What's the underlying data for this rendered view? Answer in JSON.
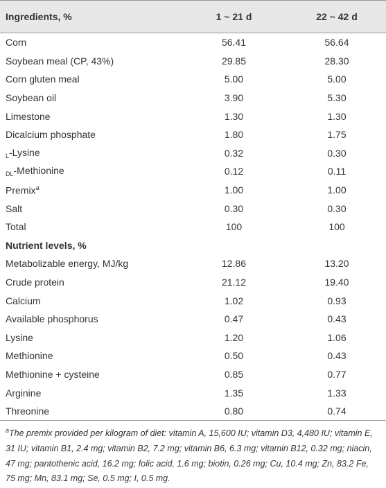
{
  "table": {
    "header": [
      "Ingredients, %",
      "1 ~ 21 d",
      "22 ~ 42 d"
    ],
    "rows": [
      [
        "Corn",
        "56.41",
        "56.64"
      ],
      [
        "Soybean meal (CP, 43%)",
        "29.85",
        "28.30"
      ],
      [
        "Corn gluten meal",
        "5.00",
        "5.00"
      ],
      [
        "Soybean oil",
        "3.90",
        "5.30"
      ],
      [
        "Limestone",
        "1.30",
        "1.30"
      ],
      [
        "Dicalcium phosphate",
        "1.80",
        "1.75"
      ],
      [
        {
          "prefix": "L",
          "text": "-Lysine"
        },
        "0.32",
        "0.30"
      ],
      [
        {
          "prefix": "DL",
          "text": "-Methionine"
        },
        "0.12",
        "0.11"
      ],
      [
        {
          "text": "Premix",
          "sup": "a"
        },
        "1.00",
        "1.00"
      ],
      [
        "Salt",
        "0.30",
        "0.30"
      ],
      [
        "Total",
        "100",
        "100"
      ],
      [
        "Nutrient levels, %"
      ],
      [
        "Metabolizable energy, MJ/kg",
        "12.86",
        "13.20"
      ],
      [
        "Crude protein",
        "21.12",
        "19.40"
      ],
      [
        "Calcium",
        "1.02",
        "0.93"
      ],
      [
        "Available phosphorus",
        "0.47",
        "0.43"
      ],
      [
        "Lysine",
        "1.20",
        "1.06"
      ],
      [
        "Methionine",
        "0.50",
        "0.43"
      ],
      [
        "Methionine + cysteine",
        "0.85",
        "0.77"
      ],
      [
        "Arginine",
        "1.35",
        "1.33"
      ],
      [
        "Threonine",
        "0.80",
        "0.74"
      ]
    ]
  },
  "footnote": {
    "marker": "a",
    "text": "The premix provided per kilogram of diet: vitamin A, 15,600 IU; vitamin D3, 4,480 IU; vitamin E, 31 IU; vitamin B1, 2.4 mg; vitamin B2, 7.2 mg; vitamin B6, 6.3 mg; vitamin B12, 0.32 mg; niacin, 47 mg; pantothenic acid, 16.2 mg; folic acid, 1.6 mg; biotin, 0.26 mg; Cu, 10.4 mg; Zn, 83.2 Fe, 75 mg; Mn, 83.1 mg; Se, 0.5 mg; I, 0.5 mg."
  }
}
